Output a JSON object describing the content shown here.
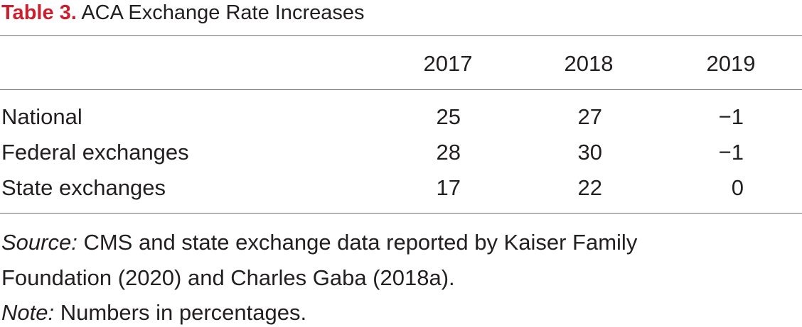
{
  "title": {
    "label": "Table 3.",
    "text": "ACA Exchange Rate Increases"
  },
  "table": {
    "columns": [
      "2017",
      "2018",
      "2019"
    ],
    "rows": [
      {
        "label": "National",
        "values": [
          "25",
          "27",
          "−1"
        ]
      },
      {
        "label": "Federal exchanges",
        "values": [
          "28",
          "30",
          "−1"
        ]
      },
      {
        "label": "State exchanges",
        "values": [
          "17",
          "22",
          "0"
        ]
      }
    ]
  },
  "notes": {
    "source_label": "Source:",
    "source_text_line1": "CMS and state exchange data reported by Kaiser Family",
    "source_text_line2": "Foundation (2020) and Charles Gaba (2018a).",
    "note_label": "Note:",
    "note_text": "Numbers in percentages."
  },
  "colors": {
    "label_accent": "#c8202f",
    "text": "#231f20",
    "rule": "#6d6e71"
  }
}
